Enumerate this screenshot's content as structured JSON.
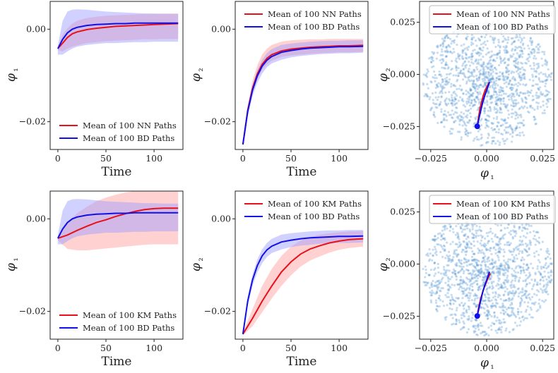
{
  "chart_data": [
    {
      "type": "line",
      "xlabel": "Time",
      "ylabel": "φ1",
      "xlim": [
        -8,
        130
      ],
      "ylim": [
        -0.026,
        0.006
      ],
      "xticks": [
        0,
        50,
        100
      ],
      "yticks": [
        -0.02,
        0.0
      ],
      "ytick_labels": [
        "−0.02",
        "0.00"
      ],
      "legend": "bottom-center",
      "series": [
        {
          "name": "Mean of 100 NN Paths",
          "color": "#e8101a",
          "x": [
            0,
            5,
            10,
            15,
            20,
            30,
            40,
            50,
            60,
            70,
            80,
            90,
            100,
            110,
            125
          ],
          "y": [
            -0.0042,
            -0.003,
            -0.0018,
            -0.001,
            -0.0006,
            -0.0001,
            0.0002,
            0.0004,
            0.0006,
            0.0007,
            0.0008,
            0.0009,
            0.001,
            0.0011,
            0.0012
          ],
          "band_low": [
            -0.0045,
            -0.0048,
            -0.0042,
            -0.0038,
            -0.0035,
            -0.003,
            -0.0028,
            -0.0026,
            -0.0025,
            -0.0024,
            -0.0023,
            -0.0022,
            -0.0022,
            -0.0021,
            -0.0021
          ],
          "band_high": [
            -0.004,
            -0.0012,
            0.0002,
            0.0012,
            0.0018,
            0.0024,
            0.0027,
            0.0029,
            0.003,
            0.0031,
            0.0032,
            0.0033,
            0.0033,
            0.0034,
            0.0034
          ]
        },
        {
          "name": "Mean of 100 BD Paths",
          "color": "#1010e8",
          "x": [
            0,
            5,
            10,
            15,
            20,
            30,
            40,
            50,
            60,
            70,
            80,
            90,
            100,
            110,
            125
          ],
          "y": [
            -0.0042,
            -0.0022,
            -0.0008,
            0.0,
            0.0004,
            0.0008,
            0.001,
            0.0011,
            0.0012,
            0.0012,
            0.0013,
            0.0013,
            0.0013,
            0.0013,
            0.0013
          ],
          "band_low": [
            -0.0055,
            -0.0055,
            -0.0048,
            -0.0042,
            -0.0038,
            -0.0034,
            -0.0032,
            -0.003,
            -0.003,
            -0.0029,
            -0.0028,
            -0.0028,
            -0.0027,
            -0.0027,
            -0.0027
          ],
          "band_high": [
            -0.0035,
            0.0018,
            0.0038,
            0.0042,
            0.0043,
            0.0042,
            0.004,
            0.0038,
            0.0037,
            0.0036,
            0.0035,
            0.0034,
            0.0034,
            0.0033,
            0.0033
          ]
        }
      ]
    },
    {
      "type": "line",
      "xlabel": "Time",
      "ylabel": "φ2",
      "xlim": [
        -8,
        130
      ],
      "ylim": [
        -0.026,
        0.006
      ],
      "xticks": [
        0,
        50,
        100
      ],
      "yticks": [
        -0.02,
        0.0
      ],
      "ytick_labels": [
        "−0.02",
        "0.00"
      ],
      "legend": "top-left",
      "series": [
        {
          "name": "Mean of 100 NN Paths",
          "color": "#e8101a",
          "x": [
            0,
            5,
            10,
            15,
            20,
            25,
            30,
            40,
            50,
            60,
            70,
            80,
            90,
            100,
            110,
            125
          ],
          "y": [
            -0.0249,
            -0.0175,
            -0.0128,
            -0.0097,
            -0.0076,
            -0.0063,
            -0.0055,
            -0.0047,
            -0.0043,
            -0.0041,
            -0.0039,
            -0.0038,
            -0.0037,
            -0.0036,
            -0.0036,
            -0.0035
          ],
          "band_low": [
            -0.0252,
            -0.0183,
            -0.0138,
            -0.0108,
            -0.0088,
            -0.0076,
            -0.0068,
            -0.006,
            -0.0057,
            -0.0055,
            -0.0053,
            -0.0052,
            -0.0051,
            -0.005,
            -0.005,
            -0.0049
          ],
          "band_high": [
            -0.0246,
            -0.0165,
            -0.0112,
            -0.0078,
            -0.0055,
            -0.0042,
            -0.0034,
            -0.0027,
            -0.0024,
            -0.0023,
            -0.0022,
            -0.0022,
            -0.0021,
            -0.0021,
            -0.0021,
            -0.0021
          ]
        },
        {
          "name": "Mean of 100 BD Paths",
          "color": "#1010e8",
          "x": [
            0,
            5,
            10,
            15,
            20,
            25,
            30,
            40,
            50,
            60,
            70,
            80,
            90,
            100,
            110,
            125
          ],
          "y": [
            -0.0249,
            -0.0178,
            -0.0132,
            -0.0101,
            -0.008,
            -0.0067,
            -0.0059,
            -0.005,
            -0.0046,
            -0.0043,
            -0.0041,
            -0.004,
            -0.0039,
            -0.0038,
            -0.0038,
            -0.0037
          ],
          "band_low": [
            -0.0252,
            -0.0188,
            -0.0145,
            -0.0116,
            -0.0096,
            -0.0082,
            -0.0074,
            -0.0066,
            -0.0061,
            -0.0058,
            -0.0056,
            -0.0054,
            -0.0053,
            -0.0052,
            -0.0052,
            -0.0051
          ],
          "band_high": [
            -0.0246,
            -0.0168,
            -0.012,
            -0.0088,
            -0.0066,
            -0.0052,
            -0.0043,
            -0.0034,
            -0.0031,
            -0.0029,
            -0.0027,
            -0.0026,
            -0.0025,
            -0.0025,
            -0.0024,
            -0.0024
          ]
        }
      ]
    },
    {
      "type": "scatter",
      "xlabel": "φ1",
      "ylabel": "φ2",
      "xlim": [
        -0.03,
        0.03
      ],
      "ylim": [
        -0.036,
        0.035
      ],
      "xticks": [
        -0.025,
        0.0,
        0.025
      ],
      "xtick_labels": [
        "−0.025",
        "0.000",
        "0.025"
      ],
      "yticks": [
        -0.025,
        0.0,
        0.025
      ],
      "ytick_labels": [
        "−0.025",
        "0.000",
        "0.025"
      ],
      "legend": "top-center",
      "cloud_color": "#5b9bd5",
      "series": [
        {
          "name": "Mean of 100 NN Paths",
          "color": "#e8101a",
          "x": [
            -0.0042,
            -0.0036,
            -0.003,
            -0.0022,
            -0.0015,
            -0.0006,
            0.0003,
            0.0008,
            0.0011,
            0.0012
          ],
          "y": [
            -0.0249,
            -0.0205,
            -0.0165,
            -0.013,
            -0.01,
            -0.0075,
            -0.0055,
            -0.0045,
            -0.004,
            -0.0036
          ]
        },
        {
          "name": "Mean of 100 BD Paths",
          "color": "#1010e8",
          "x": [
            -0.0042,
            -0.0033,
            -0.0024,
            -0.0016,
            -0.0008,
            0.0,
            0.0005,
            0.0009,
            0.0011,
            0.0013
          ],
          "y": [
            -0.0249,
            -0.0205,
            -0.0163,
            -0.0128,
            -0.01,
            -0.0077,
            -0.006,
            -0.0049,
            -0.0042,
            -0.0037
          ]
        }
      ],
      "start_point": [
        -0.0042,
        -0.0249
      ]
    },
    {
      "type": "line",
      "xlabel": "Time",
      "ylabel": "φ1",
      "xlim": [
        -8,
        130
      ],
      "ylim": [
        -0.026,
        0.006
      ],
      "xticks": [
        0,
        50,
        100
      ],
      "yticks": [
        -0.02,
        0.0
      ],
      "ytick_labels": [
        "−0.02",
        "0.00"
      ],
      "legend": "bottom-center",
      "series": [
        {
          "name": "Mean of 100 KM Paths",
          "color": "#e8101a",
          "x": [
            0,
            10,
            20,
            30,
            40,
            50,
            60,
            70,
            80,
            90,
            100,
            110,
            125
          ],
          "y": [
            -0.0042,
            -0.0035,
            -0.0025,
            -0.0016,
            -0.0008,
            -0.0002,
            0.0005,
            0.0011,
            0.0016,
            0.002,
            0.0022,
            0.0023,
            0.0023
          ],
          "band_low": [
            -0.0046,
            -0.0065,
            -0.0068,
            -0.0068,
            -0.0066,
            -0.0064,
            -0.0062,
            -0.006,
            -0.0058,
            -0.0056,
            -0.0055,
            -0.0055,
            -0.0055
          ],
          "band_high": [
            -0.0038,
            -0.0008,
            0.0012,
            0.0026,
            0.0038,
            0.0046,
            0.0052,
            0.0057,
            0.006,
            0.0061,
            0.0062,
            0.0062,
            0.0062
          ]
        },
        {
          "name": "Mean of 100 BD Paths",
          "color": "#1010e8",
          "x": [
            0,
            5,
            10,
            15,
            20,
            30,
            40,
            50,
            60,
            70,
            80,
            90,
            100,
            110,
            125
          ],
          "y": [
            -0.0042,
            -0.0022,
            -0.0008,
            0.0,
            0.0004,
            0.0008,
            0.001,
            0.0011,
            0.0012,
            0.0012,
            0.0013,
            0.0013,
            0.0013,
            0.0013,
            0.0013
          ],
          "band_low": [
            -0.0055,
            -0.0055,
            -0.0048,
            -0.0042,
            -0.0038,
            -0.0034,
            -0.0032,
            -0.003,
            -0.003,
            -0.0029,
            -0.0028,
            -0.0028,
            -0.0027,
            -0.0027,
            -0.0027
          ],
          "band_high": [
            -0.0035,
            0.0018,
            0.0038,
            0.0042,
            0.0043,
            0.0042,
            0.004,
            0.0038,
            0.0037,
            0.0036,
            0.0035,
            0.0034,
            0.0034,
            0.0033,
            0.0033
          ]
        }
      ]
    },
    {
      "type": "line",
      "xlabel": "Time",
      "ylabel": "φ2",
      "xlim": [
        -8,
        130
      ],
      "ylim": [
        -0.026,
        0.006
      ],
      "xticks": [
        0,
        50,
        100
      ],
      "yticks": [
        -0.02,
        0.0
      ],
      "ytick_labels": [
        "−0.02",
        "0.00"
      ],
      "legend": "top-left",
      "series": [
        {
          "name": "Mean of 100 KM Paths",
          "color": "#e8101a",
          "x": [
            0,
            10,
            20,
            30,
            40,
            50,
            60,
            70,
            80,
            90,
            100,
            110,
            125
          ],
          "y": [
            -0.0249,
            -0.0215,
            -0.0178,
            -0.0145,
            -0.0115,
            -0.0093,
            -0.0076,
            -0.0065,
            -0.0058,
            -0.0052,
            -0.0048,
            -0.0045,
            -0.0043
          ],
          "band_low": [
            -0.0252,
            -0.0232,
            -0.0202,
            -0.0172,
            -0.0145,
            -0.0122,
            -0.0103,
            -0.009,
            -0.0081,
            -0.0073,
            -0.0067,
            -0.0063,
            -0.006
          ],
          "band_high": [
            -0.0246,
            -0.0195,
            -0.0145,
            -0.0108,
            -0.008,
            -0.006,
            -0.0047,
            -0.0039,
            -0.0034,
            -0.0031,
            -0.0029,
            -0.0027,
            -0.0026
          ]
        },
        {
          "name": "Mean of 100 BD Paths",
          "color": "#1010e8",
          "x": [
            0,
            5,
            10,
            15,
            20,
            25,
            30,
            40,
            50,
            60,
            70,
            80,
            90,
            100,
            110,
            125
          ],
          "y": [
            -0.0249,
            -0.0178,
            -0.0132,
            -0.0101,
            -0.008,
            -0.0067,
            -0.0059,
            -0.005,
            -0.0046,
            -0.0043,
            -0.0041,
            -0.004,
            -0.0039,
            -0.0038,
            -0.0038,
            -0.0037
          ],
          "band_low": [
            -0.0252,
            -0.0188,
            -0.0145,
            -0.0116,
            -0.0096,
            -0.0082,
            -0.0074,
            -0.0066,
            -0.0061,
            -0.0058,
            -0.0056,
            -0.0054,
            -0.0053,
            -0.0052,
            -0.0052,
            -0.0051
          ],
          "band_high": [
            -0.0246,
            -0.0168,
            -0.012,
            -0.0088,
            -0.0066,
            -0.0052,
            -0.0043,
            -0.0034,
            -0.0031,
            -0.0029,
            -0.0027,
            -0.0026,
            -0.0025,
            -0.0025,
            -0.0024,
            -0.0024
          ]
        }
      ]
    },
    {
      "type": "scatter",
      "xlabel": "φ1",
      "ylabel": "φ2",
      "xlim": [
        -0.03,
        0.03
      ],
      "ylim": [
        -0.036,
        0.035
      ],
      "xticks": [
        -0.025,
        0.0,
        0.025
      ],
      "xtick_labels": [
        "−0.025",
        "0.000",
        "0.025"
      ],
      "yticks": [
        -0.025,
        0.0,
        0.025
      ],
      "ytick_labels": [
        "−0.025",
        "0.000",
        "0.025"
      ],
      "legend": "top-center",
      "cloud_color": "#5b9bd5",
      "series": [
        {
          "name": "Mean of 100 KM Paths",
          "color": "#e8101a",
          "x": [
            -0.0042,
            -0.0036,
            -0.0028,
            -0.0019,
            -0.001,
            -0.0002,
            0.0005,
            0.001,
            0.0014,
            0.0017
          ],
          "y": [
            -0.0249,
            -0.021,
            -0.0172,
            -0.0138,
            -0.011,
            -0.0088,
            -0.007,
            -0.0058,
            -0.005,
            -0.0045
          ]
        },
        {
          "name": "Mean of 100 BD Paths",
          "color": "#1010e8",
          "x": [
            -0.0042,
            -0.0033,
            -0.0024,
            -0.0016,
            -0.0008,
            0.0,
            0.0005,
            0.0009,
            0.0011,
            0.0013
          ],
          "y": [
            -0.0249,
            -0.0205,
            -0.0163,
            -0.0128,
            -0.01,
            -0.0077,
            -0.006,
            -0.0049,
            -0.0042,
            -0.0037
          ]
        }
      ],
      "start_point": [
        -0.0042,
        -0.0249
      ]
    }
  ]
}
